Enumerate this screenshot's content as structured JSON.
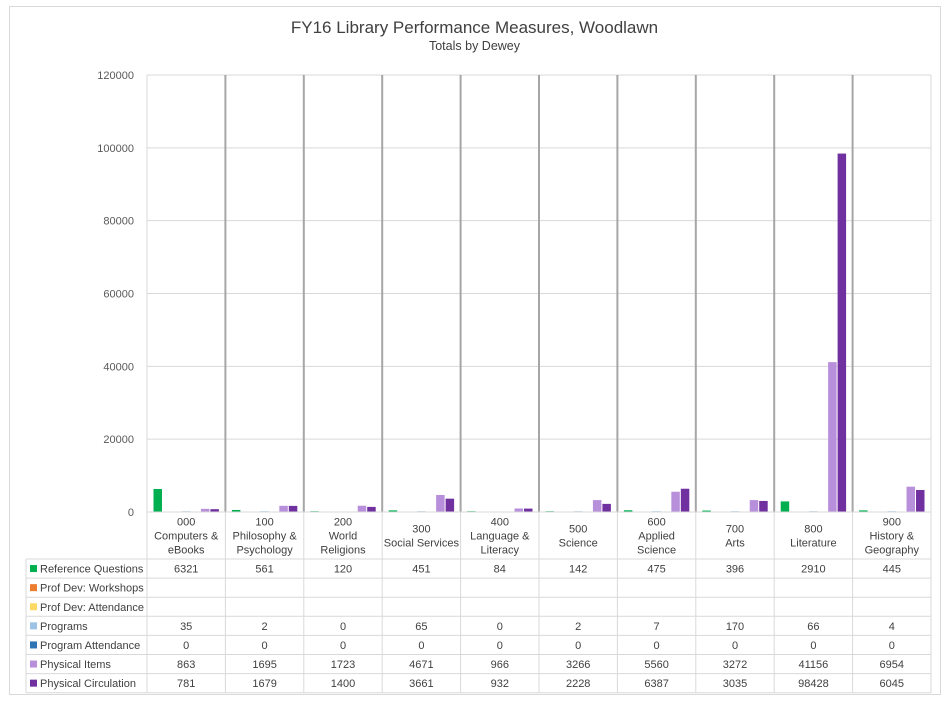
{
  "chart_data": {
    "type": "bar",
    "title": "FY16 Library Performance Measures, Woodlawn",
    "subtitle": "Totals by Dewey",
    "ylim": [
      0,
      120000
    ],
    "yticks": [
      0,
      20000,
      40000,
      60000,
      80000,
      100000,
      120000
    ],
    "grid": true,
    "legend": "data-table",
    "categories": [
      [
        "000",
        "Computers &",
        "eBooks"
      ],
      [
        "100",
        "Philosophy &",
        "Psychology"
      ],
      [
        "200",
        "World",
        "Religions"
      ],
      [
        "300",
        "Social Services"
      ],
      [
        "400",
        "Language &",
        "Literacy"
      ],
      [
        "500",
        "Science"
      ],
      [
        "600",
        "Applied",
        "Science"
      ],
      [
        "700",
        "Arts"
      ],
      [
        "800",
        "Literature"
      ],
      [
        "900",
        "History &",
        "Geography"
      ]
    ],
    "series": [
      {
        "name": "Reference Questions",
        "color": "#00b050",
        "values": [
          6321,
          561,
          120,
          451,
          84,
          142,
          475,
          396,
          2910,
          445
        ]
      },
      {
        "name": "Prof Dev: Workshops",
        "color": "#ed7d31",
        "values": [
          null,
          null,
          null,
          null,
          null,
          null,
          null,
          null,
          null,
          null
        ]
      },
      {
        "name": "Prof Dev: Attendance",
        "color": "#ffd966",
        "values": [
          null,
          null,
          null,
          null,
          null,
          null,
          null,
          null,
          null,
          null
        ]
      },
      {
        "name": "Programs",
        "color": "#9dc3e6",
        "values": [
          35,
          2,
          0,
          65,
          0,
          2,
          7,
          170,
          66,
          4
        ]
      },
      {
        "name": "Program Attendance",
        "color": "#2e75b6",
        "values": [
          0,
          0,
          0,
          0,
          0,
          0,
          0,
          0,
          0,
          0
        ]
      },
      {
        "name": "Physical Items",
        "color": "#b88fdb",
        "values": [
          863,
          1695,
          1723,
          4671,
          966,
          3266,
          5560,
          3272,
          41156,
          6954
        ]
      },
      {
        "name": "Physical Circulation",
        "color": "#7030a0",
        "values": [
          781,
          1679,
          1400,
          3661,
          932,
          2228,
          6387,
          3035,
          98428,
          6045
        ]
      }
    ]
  }
}
